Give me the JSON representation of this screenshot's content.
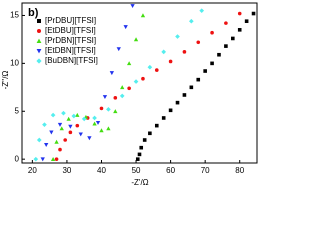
{
  "chart_data": {
    "type": "scatter",
    "panel_label": "b)",
    "xlabel": "-Z'/Ω",
    "ylabel": "-Z''/Ω",
    "xlim": [
      17,
      85
    ],
    "ylim": [
      -0.4,
      16.3
    ],
    "xticks": [
      20,
      30,
      40,
      50,
      60,
      70,
      80
    ],
    "yticks": [
      0,
      5,
      10,
      15
    ],
    "legend": "upper left",
    "series": [
      {
        "name": "[PrDBU][TFSI]",
        "color": "#000000",
        "marker": "square",
        "x": [
          50.5,
          51,
          51.5,
          52.5,
          54,
          56,
          58,
          60,
          62,
          64,
          66,
          68,
          70,
          72,
          74,
          76,
          78,
          80,
          82,
          84
        ],
        "values": [
          0,
          0.5,
          1.2,
          2,
          2.7,
          3.5,
          4.3,
          5.1,
          5.9,
          6.7,
          7.5,
          8.3,
          9.2,
          10,
          10.9,
          11.8,
          12.6,
          13.5,
          14.4,
          15.2
        ]
      },
      {
        "name": "[EtDBU][TFSI]",
        "color": "#ee1111",
        "marker": "circle",
        "x": [
          27,
          28,
          29.5,
          31,
          33,
          36,
          40,
          44,
          48,
          52,
          56,
          60,
          64,
          68,
          72,
          76,
          80
        ],
        "values": [
          0,
          1,
          2,
          2.8,
          3.5,
          4.3,
          5.3,
          6.4,
          7.4,
          8.4,
          9.3,
          10.2,
          11.2,
          12.2,
          13.2,
          14.2,
          15.2
        ]
      },
      {
        "name": "[PrDBN][TFSI]",
        "color": "#44dd11",
        "marker": "triangle",
        "x": [
          26,
          27,
          28.5,
          30.5,
          33,
          35.5,
          38,
          40,
          42,
          44,
          46,
          48,
          50,
          52
        ],
        "values": [
          0,
          1.8,
          3.2,
          4.2,
          4.6,
          4.4,
          3.7,
          3,
          3.2,
          5,
          7.5,
          10,
          12.5,
          15
        ]
      },
      {
        "name": "[EtDBN][TFSI]",
        "color": "#2233ee",
        "marker": "triangle-down",
        "x": [
          23,
          24,
          25.5,
          28,
          31,
          34,
          36.5,
          39,
          41,
          43,
          45,
          47,
          49
        ],
        "values": [
          0,
          1.5,
          2.8,
          3.6,
          3.4,
          2.6,
          2.2,
          3.8,
          6.5,
          9,
          11.5,
          13.8,
          16
        ]
      },
      {
        "name": "[BuDBN][TFSI]",
        "color": "#55eeee",
        "marker": "diamond",
        "x": [
          21,
          22,
          23.5,
          26,
          29,
          32,
          35,
          38,
          42,
          46,
          50,
          54,
          58,
          62,
          66,
          69
        ],
        "values": [
          0,
          2,
          3.6,
          4.6,
          4.8,
          4.5,
          4.2,
          4.3,
          5.2,
          6.6,
          8.1,
          9.6,
          11.2,
          12.8,
          14.4,
          15.5
        ]
      }
    ]
  }
}
